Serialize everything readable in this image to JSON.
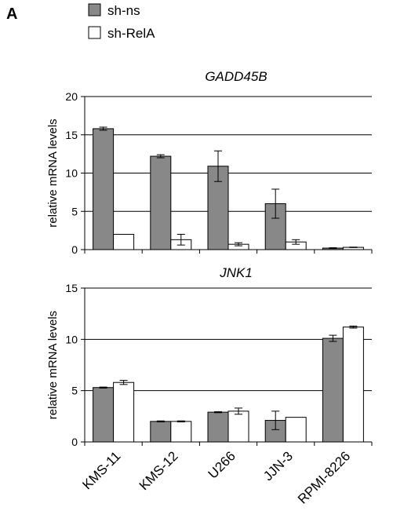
{
  "panel_letter": "A",
  "legend": [
    {
      "label": "sh-ns",
      "color": "#888888"
    },
    {
      "label": "sh-RelA",
      "color": "#ffffff"
    }
  ],
  "categories": [
    "KMS-11",
    "KMS-12",
    "U266",
    "JJN-3",
    "RPMI-8226"
  ],
  "chart_data": [
    {
      "type": "bar",
      "title": "GADD45B",
      "ylabel": "relative mRNA levels",
      "ylim": [
        0,
        20
      ],
      "yticks": [
        0,
        5,
        10,
        15,
        20
      ],
      "grid": true,
      "categories": [
        "KMS-11",
        "KMS-12",
        "U266",
        "JJN-3",
        "RPMI-8226"
      ],
      "series": [
        {
          "name": "sh-ns",
          "color": "#888888",
          "values": [
            15.8,
            12.2,
            10.9,
            6.0,
            0.2
          ],
          "errors": [
            0.2,
            0.2,
            2.0,
            1.9,
            0.05
          ]
        },
        {
          "name": "sh-RelA",
          "color": "#ffffff",
          "values": [
            2.0,
            1.3,
            0.7,
            1.0,
            0.3
          ],
          "errors": [
            0.0,
            0.7,
            0.2,
            0.3,
            0.03
          ]
        }
      ]
    },
    {
      "type": "bar",
      "title": "JNK1",
      "ylabel": "relative mRNA levels",
      "ylim": [
        0,
        15
      ],
      "yticks": [
        0,
        5,
        10,
        15
      ],
      "grid": true,
      "categories": [
        "KMS-11",
        "KMS-12",
        "U266",
        "JJN-3",
        "RPMI-8226"
      ],
      "series": [
        {
          "name": "sh-ns",
          "color": "#888888",
          "values": [
            5.3,
            2.0,
            2.9,
            2.1,
            10.1
          ],
          "errors": [
            0.05,
            0.05,
            0.05,
            0.9,
            0.3
          ]
        },
        {
          "name": "sh-RelA",
          "color": "#ffffff",
          "values": [
            5.8,
            2.0,
            3.0,
            2.4,
            11.2
          ],
          "errors": [
            0.2,
            0.05,
            0.3,
            0.0,
            0.1
          ]
        }
      ]
    }
  ]
}
